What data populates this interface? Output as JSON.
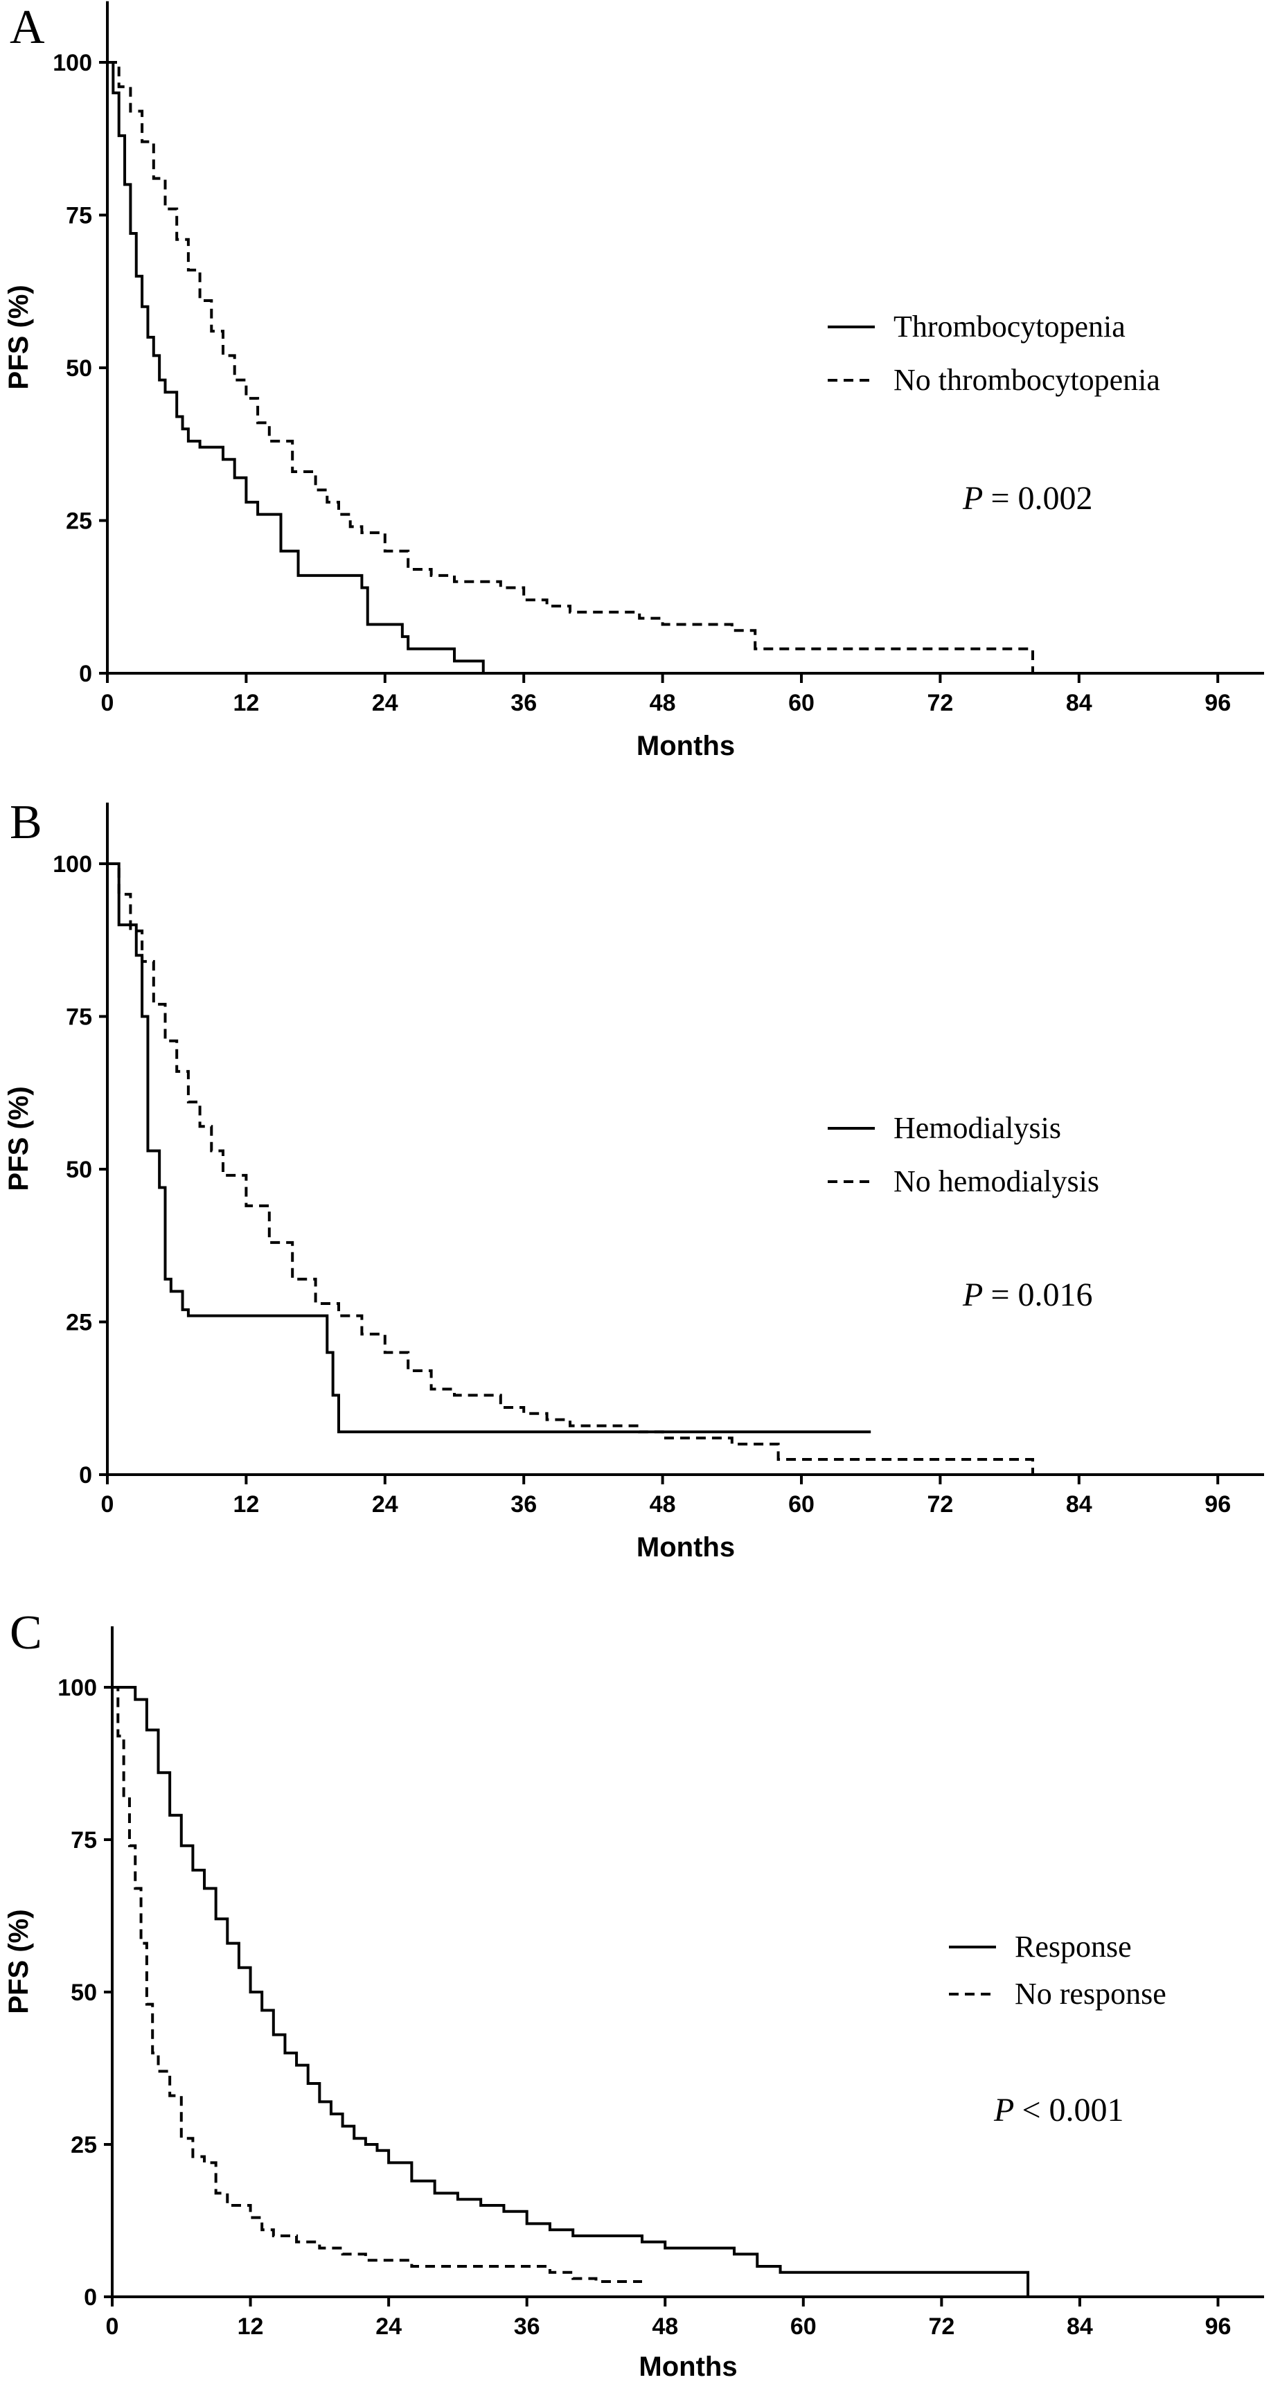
{
  "chart_data": [
    {
      "type": "line",
      "panel": "A",
      "xlabel": "Months",
      "ylabel": "PFS (%)",
      "xlim": [
        0,
        100
      ],
      "ylim": [
        0,
        110
      ],
      "xticks": [
        0,
        12,
        24,
        36,
        48,
        60,
        72,
        84,
        96
      ],
      "yticks": [
        0,
        25,
        50,
        75,
        100
      ],
      "legend_position": "right",
      "annotation": "= 0.002",
      "series": [
        {
          "name": "Thrombocytopenia",
          "style": "solid",
          "x": [
            0,
            0.5,
            1,
            1.5,
            2,
            2.5,
            3,
            3.5,
            4,
            4.5,
            5,
            6,
            6.5,
            7,
            8,
            10,
            11,
            12,
            13,
            14.5,
            15,
            16.5,
            22,
            22.5,
            25.5,
            26,
            29,
            30,
            32.5
          ],
          "y": [
            100,
            95,
            88,
            80,
            72,
            65,
            60,
            55,
            52,
            48,
            46,
            42,
            40,
            38,
            37,
            35,
            32,
            28,
            26,
            26,
            20,
            16,
            14,
            8,
            6,
            4,
            4,
            2,
            0
          ]
        },
        {
          "name": "No thrombocytopenia",
          "style": "dashed",
          "x": [
            0,
            1,
            2,
            3,
            4,
            5,
            6,
            7,
            8,
            9,
            10,
            11,
            12,
            13,
            14,
            16,
            18,
            19,
            20,
            21,
            22,
            24,
            26,
            28,
            30,
            34,
            36,
            38,
            40,
            42,
            46,
            48,
            50,
            54,
            56,
            58,
            70,
            79.5,
            80
          ],
          "y": [
            100,
            96,
            92,
            87,
            81,
            76,
            71,
            66,
            61,
            56,
            52,
            48,
            45,
            41,
            38,
            33,
            30,
            28,
            26,
            24,
            23,
            20,
            17,
            16,
            15,
            14,
            12,
            11,
            10,
            10,
            9,
            8,
            8,
            7,
            4,
            4,
            4,
            4,
            0
          ]
        }
      ]
    },
    {
      "type": "line",
      "panel": "B",
      "xlabel": "Months",
      "ylabel": "PFS (%)",
      "xlim": [
        0,
        100
      ],
      "ylim": [
        0,
        110
      ],
      "xticks": [
        0,
        12,
        24,
        36,
        48,
        60,
        72,
        84,
        96
      ],
      "yticks": [
        0,
        25,
        50,
        75,
        100
      ],
      "legend_position": "right",
      "annotation": "= 0.016",
      "series": [
        {
          "name": "Hemodialysis",
          "style": "solid",
          "x": [
            0,
            1,
            2.5,
            3,
            3.5,
            4.5,
            5,
            5.5,
            6.5,
            7,
            19,
            19.5,
            20,
            30,
            40,
            50,
            60,
            66
          ],
          "y": [
            100,
            90,
            85,
            75,
            53,
            47,
            32,
            30,
            27,
            26,
            20,
            13,
            7,
            7,
            7,
            7,
            7,
            7
          ]
        },
        {
          "name": "No hemodialysis",
          "style": "dashed",
          "x": [
            0,
            1,
            2,
            3,
            4,
            5,
            6,
            7,
            8,
            9,
            10,
            12,
            14,
            16,
            18,
            20,
            22,
            24,
            26,
            28,
            30,
            34,
            36,
            38,
            40,
            44,
            46,
            48,
            52,
            54,
            56,
            58,
            70,
            79.5,
            80
          ],
          "y": [
            100,
            95,
            89,
            84,
            77,
            71,
            66,
            61,
            57,
            53,
            49,
            44,
            38,
            32,
            28,
            26,
            23,
            20,
            17,
            14,
            13,
            11,
            10,
            9,
            8,
            8,
            7,
            6,
            6,
            5,
            5,
            2.5,
            2.5,
            2.5,
            0
          ]
        }
      ]
    },
    {
      "type": "line",
      "panel": "C",
      "xlabel": "Months",
      "ylabel": "PFS (%)",
      "xlim": [
        0,
        100
      ],
      "ylim": [
        0,
        110
      ],
      "xticks": [
        0,
        12,
        24,
        36,
        48,
        60,
        72,
        84,
        96
      ],
      "yticks": [
        0,
        25,
        50,
        75,
        100
      ],
      "legend_position": "right",
      "annotation": "< 0.001",
      "series": [
        {
          "name": "Response",
          "style": "solid",
          "x": [
            0,
            1,
            2,
            3,
            4,
            5,
            6,
            7,
            8,
            9,
            10,
            11,
            12,
            13,
            14,
            15,
            16,
            17,
            18,
            19,
            20,
            21,
            22,
            23,
            24,
            26,
            28,
            30,
            32,
            34,
            36,
            38,
            40,
            44,
            46,
            48,
            52,
            54,
            56,
            58,
            70,
            79,
            79.5
          ],
          "y": [
            100,
            100,
            98,
            93,
            86,
            79,
            74,
            70,
            67,
            62,
            58,
            54,
            50,
            47,
            43,
            40,
            38,
            35,
            32,
            30,
            28,
            26,
            25,
            24,
            22,
            19,
            17,
            16,
            15,
            14,
            12,
            11,
            10,
            10,
            9,
            8,
            8,
            7,
            5,
            4,
            4,
            4,
            0
          ]
        },
        {
          "name": "No response",
          "style": "dashed",
          "x": [
            0,
            0.5,
            1,
            1.5,
            2,
            2.5,
            3,
            3.5,
            4,
            5,
            6,
            7,
            8,
            9,
            10,
            12,
            13,
            14,
            16,
            18,
            20,
            22,
            24,
            26,
            30,
            34,
            36,
            38,
            40,
            42,
            46
          ],
          "y": [
            100,
            92,
            82,
            74,
            67,
            58,
            48,
            40,
            37,
            33,
            26,
            23,
            22,
            17,
            15,
            13,
            11,
            10,
            9,
            8,
            7,
            6,
            6,
            5,
            5,
            5,
            5,
            4,
            3,
            2.5,
            2.5
          ]
        }
      ]
    }
  ]
}
